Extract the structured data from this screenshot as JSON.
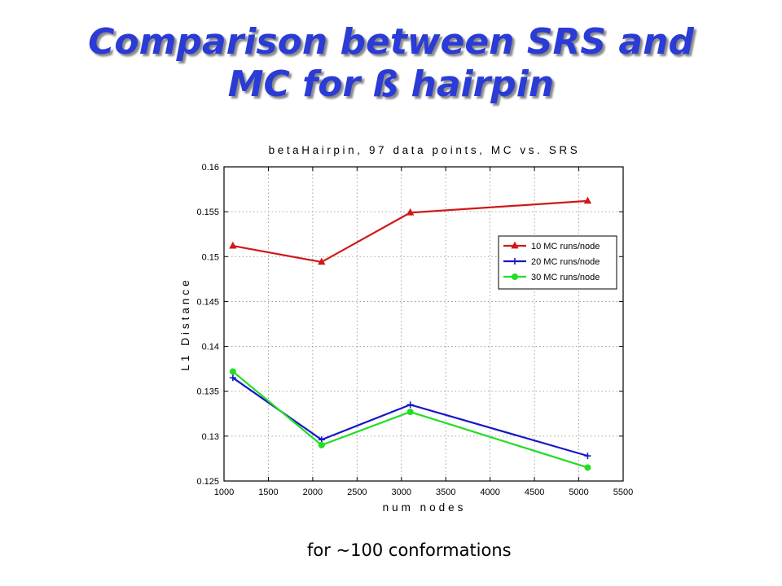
{
  "slide": {
    "title_line1": "Comparison between SRS and",
    "title_line2": "MC for ß hairpin",
    "footnote": "for ~100 conformations"
  },
  "chart_data": {
    "type": "line",
    "title": "betaHairpin, 97 data points, MC vs. SRS",
    "xlabel": "num nodes",
    "ylabel": "L1 Distance",
    "xlim": [
      1000,
      5500
    ],
    "ylim": [
      0.125,
      0.16
    ],
    "xticks": [
      1000,
      1500,
      2000,
      2500,
      3000,
      3500,
      4000,
      4500,
      5000,
      5500
    ],
    "xtick_labels": [
      "1000",
      "1500",
      "2000",
      "2500",
      "3000",
      "3500",
      "4000",
      "4500",
      "5000",
      "5500"
    ],
    "yticks": [
      0.125,
      0.13,
      0.135,
      0.14,
      0.145,
      0.15,
      0.155,
      0.16
    ],
    "ytick_labels": [
      "0.125",
      "0.13",
      "0.135",
      "0.14",
      "0.145",
      "0.15",
      "0.155",
      "0.16"
    ],
    "grid": true,
    "legend_position": "upper-right",
    "x": [
      1100,
      2100,
      3100,
      5100
    ],
    "series": [
      {
        "name": "10 MC runs/node",
        "values": [
          0.1512,
          0.1494,
          0.1549,
          0.1562
        ],
        "color": "#d01818",
        "marker": "triangle"
      },
      {
        "name": "20 MC runs/node",
        "values": [
          0.1365,
          0.1296,
          0.1335,
          0.1278
        ],
        "color": "#1616c8",
        "marker": "plus"
      },
      {
        "name": "30 MC runs/node",
        "values": [
          0.1372,
          0.129,
          0.1327,
          0.1265
        ],
        "color": "#22dd22",
        "marker": "circle"
      }
    ]
  }
}
